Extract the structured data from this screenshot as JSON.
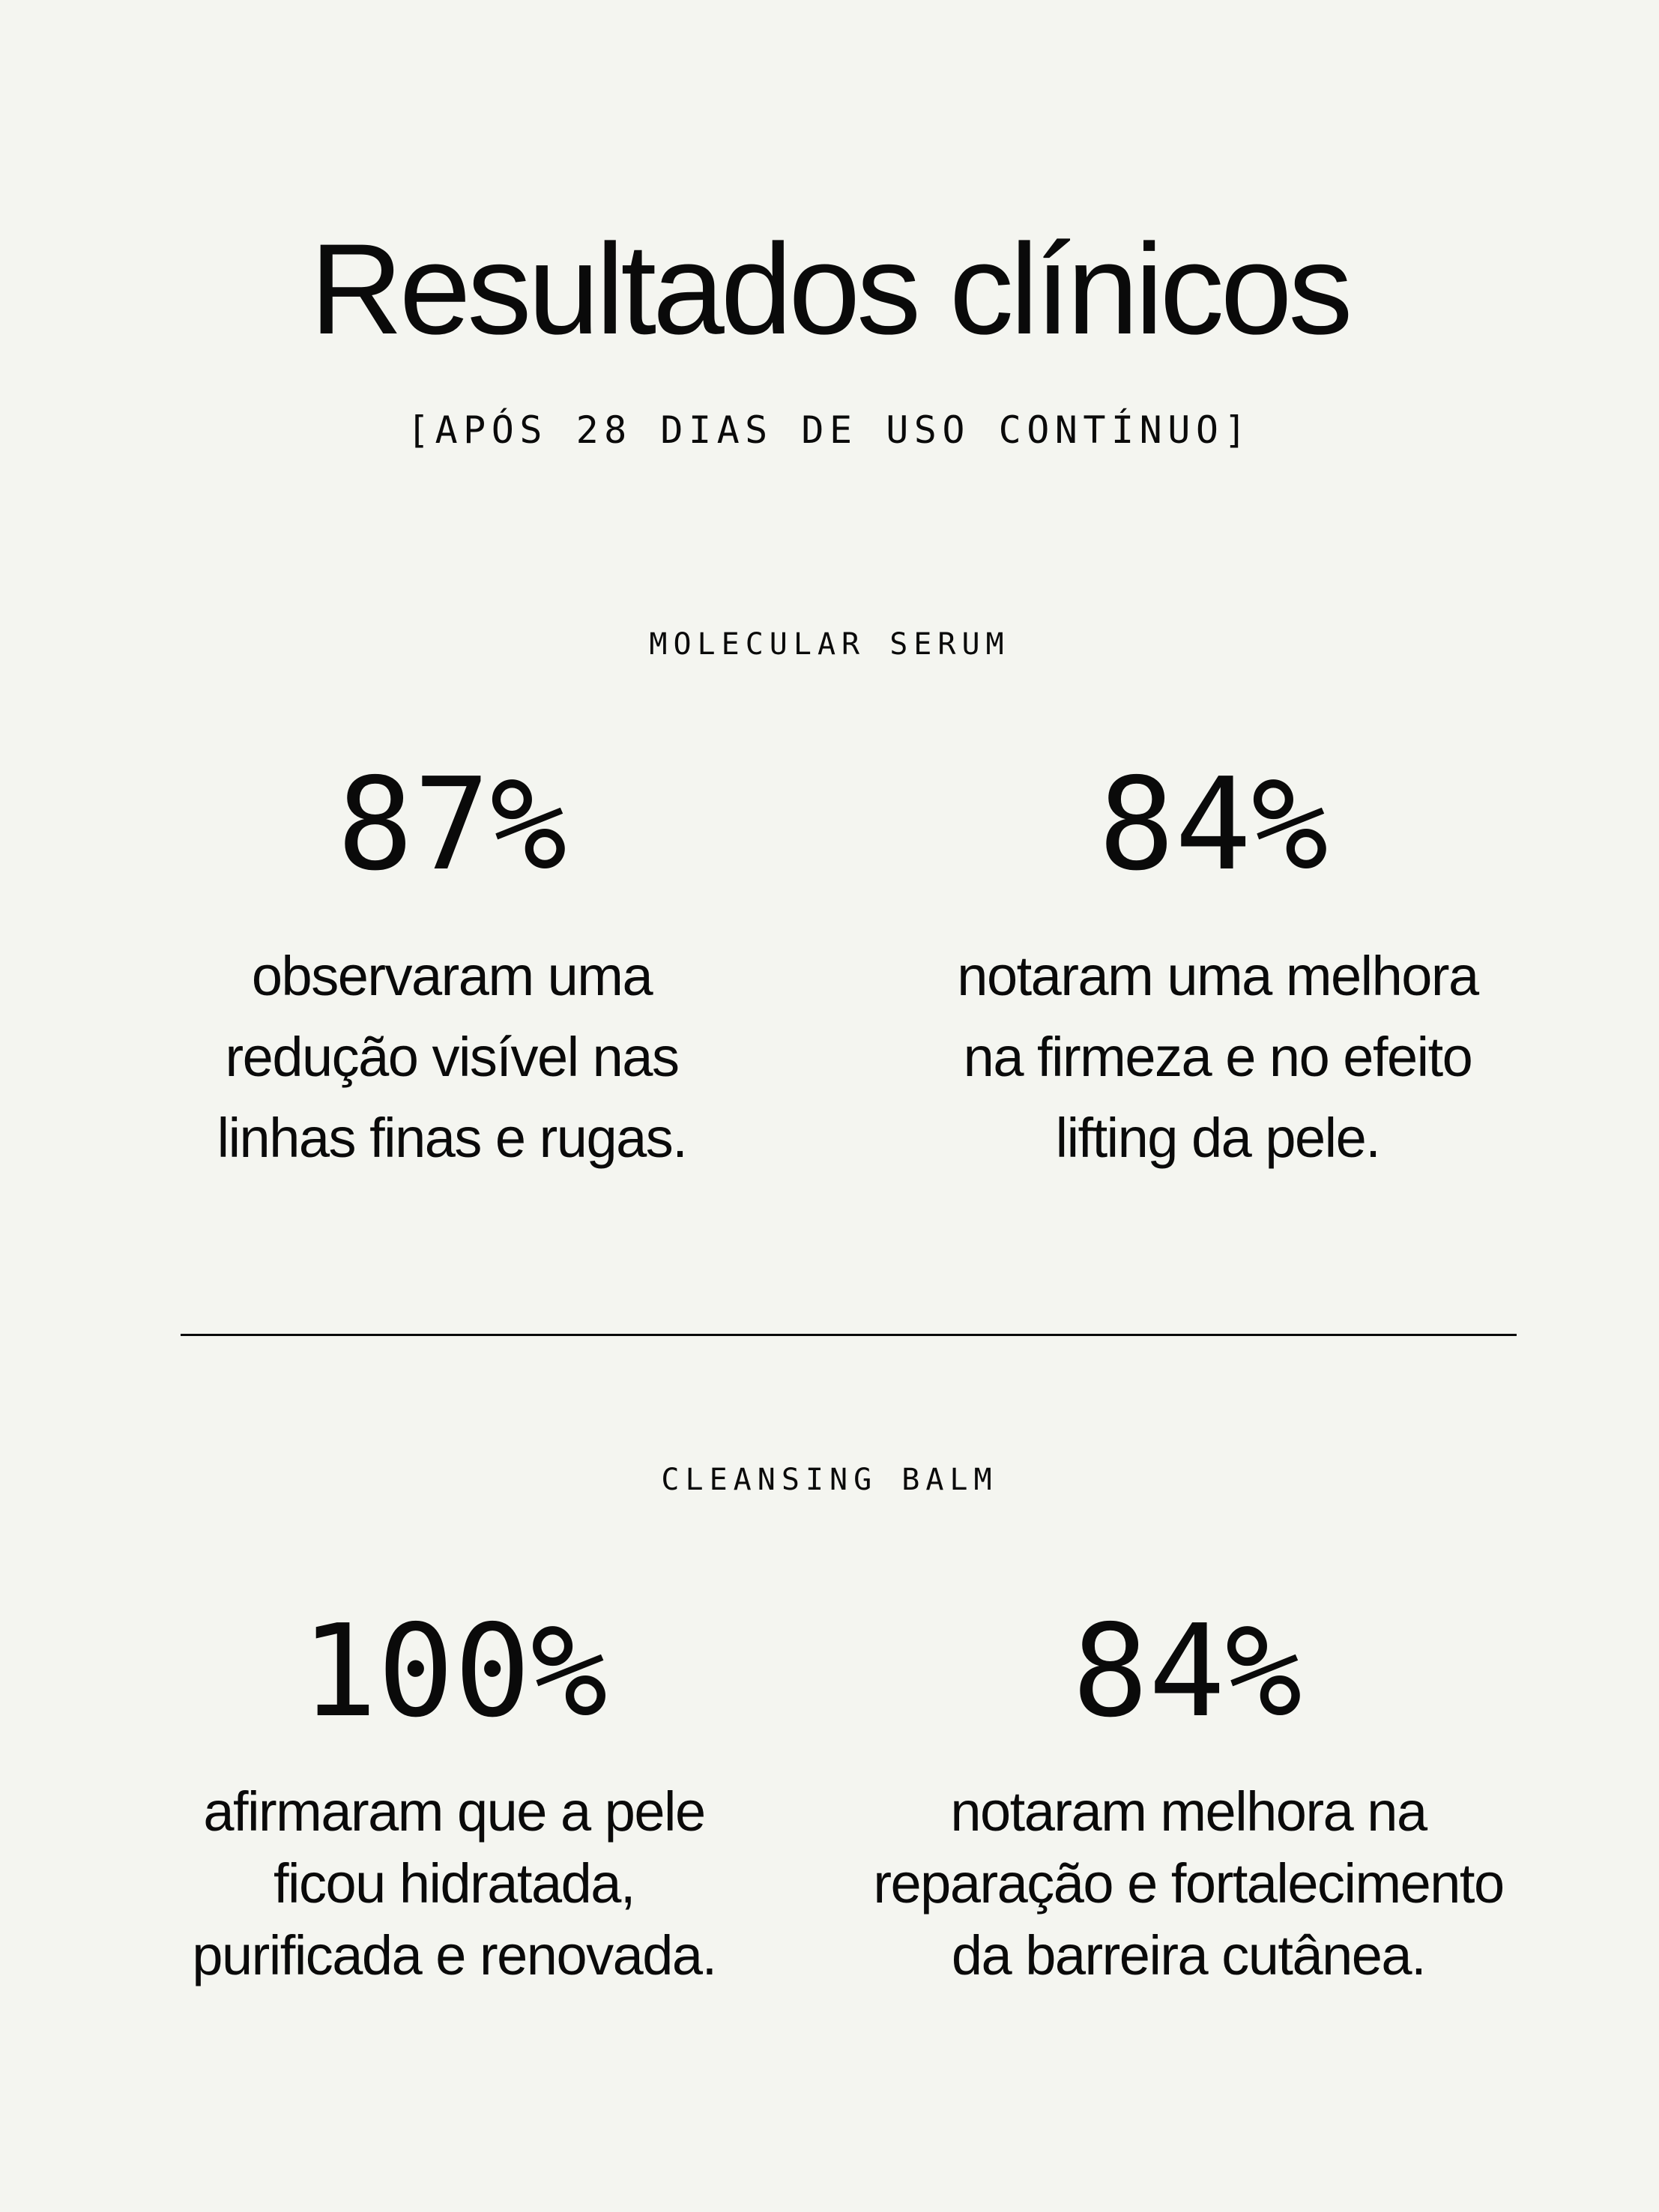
{
  "header": {
    "title": "Resultados clínicos",
    "subtitle": "[APÓS 28 DIAS DE USO CONTÍNUO]"
  },
  "sections": [
    {
      "label": "MOLECULAR SERUM",
      "stats": [
        {
          "value": "87%",
          "description": "observaram uma\nredução visível nas\nlinhas finas e rugas."
        },
        {
          "value": "84%",
          "description": "notaram uma melhora\nna firmeza e no efeito\nlifting da pele."
        }
      ]
    },
    {
      "label": "CLEANSING BALM",
      "stats": [
        {
          "value": "100%",
          "description": "afirmaram que a pele\nficou hidratada,\npurificada e renovada."
        },
        {
          "value": "84%",
          "description": "notaram melhora na\nreparação e fortalecimento\nda barreira cutânea."
        }
      ]
    }
  ],
  "colors": {
    "background": "#f4f5f0",
    "text": "#0a0a0a"
  }
}
